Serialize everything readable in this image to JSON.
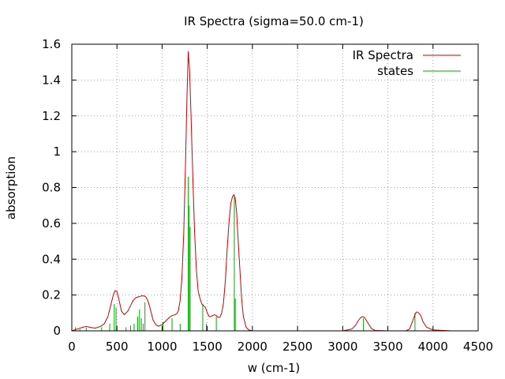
{
  "chart_data": {
    "type": "line",
    "title": "IR Spectra (sigma=50.0 cm-1)",
    "xlabel": "w (cm-1)",
    "ylabel": "absorption",
    "xlim": [
      0,
      4500
    ],
    "ylim": [
      0,
      1.6
    ],
    "x_ticks": [
      0,
      500,
      1000,
      1500,
      2000,
      2500,
      3000,
      3500,
      4000,
      4500
    ],
    "x_tick_labels": [
      "0",
      "500",
      "1000",
      "1500",
      "2000",
      "2500",
      "3000",
      "3500",
      "4000",
      "4500"
    ],
    "y_ticks": [
      0,
      0.2,
      0.4,
      0.6,
      0.8,
      1.0,
      1.2,
      1.4,
      1.6
    ],
    "y_tick_labels": [
      "0",
      "0.2",
      "0.4",
      "0.6",
      "0.8",
      "1",
      "1.2",
      "1.4",
      "1.6"
    ],
    "grid": true,
    "legend_position": "top-right",
    "series": [
      {
        "name": "IR Spectra",
        "kind": "line",
        "color": "#cc0000",
        "x": [
          0,
          60,
          120,
          160,
          200,
          260,
          320,
          360,
          400,
          430,
          460,
          480,
          500,
          520,
          550,
          580,
          620,
          650,
          680,
          710,
          740,
          770,
          800,
          820,
          840,
          860,
          880,
          900,
          930,
          960,
          1000,
          1040,
          1080,
          1110,
          1140,
          1160,
          1180,
          1200,
          1220,
          1240,
          1260,
          1275,
          1290,
          1305,
          1320,
          1340,
          1360,
          1380,
          1400,
          1420,
          1440,
          1460,
          1480,
          1500,
          1520,
          1540,
          1560,
          1580,
          1600,
          1620,
          1640,
          1660,
          1680,
          1700,
          1720,
          1740,
          1760,
          1780,
          1795,
          1810,
          1825,
          1840,
          1860,
          1880,
          1900,
          1930,
          1960,
          2000,
          2100,
          2500,
          3000,
          3100,
          3140,
          3170,
          3200,
          3220,
          3240,
          3260,
          3290,
          3320,
          3360,
          3500,
          3700,
          3740,
          3770,
          3800,
          3815,
          3830,
          3860,
          3890,
          3930,
          4000,
          4200,
          4500
        ],
        "y": [
          0,
          0.01,
          0.02,
          0.025,
          0.02,
          0.015,
          0.025,
          0.04,
          0.08,
          0.14,
          0.2,
          0.225,
          0.22,
          0.18,
          0.11,
          0.09,
          0.11,
          0.14,
          0.17,
          0.185,
          0.19,
          0.195,
          0.195,
          0.19,
          0.17,
          0.14,
          0.1,
          0.06,
          0.035,
          0.025,
          0.035,
          0.055,
          0.075,
          0.085,
          0.09,
          0.095,
          0.11,
          0.17,
          0.3,
          0.55,
          0.95,
          1.3,
          1.56,
          1.45,
          1.2,
          0.85,
          0.55,
          0.34,
          0.22,
          0.18,
          0.15,
          0.14,
          0.13,
          0.1,
          0.08,
          0.08,
          0.085,
          0.09,
          0.085,
          0.075,
          0.075,
          0.1,
          0.16,
          0.28,
          0.45,
          0.6,
          0.71,
          0.75,
          0.76,
          0.74,
          0.66,
          0.52,
          0.35,
          0.18,
          0.08,
          0.02,
          0.005,
          0,
          0,
          0,
          0,
          0.01,
          0.03,
          0.055,
          0.075,
          0.08,
          0.075,
          0.06,
          0.035,
          0.012,
          0.002,
          0,
          0,
          0.01,
          0.05,
          0.09,
          0.105,
          0.105,
          0.09,
          0.05,
          0.02,
          0.005,
          0,
          0
        ]
      },
      {
        "name": "states",
        "kind": "impulses",
        "color": "#00aa00",
        "x": [
          40,
          90,
          160,
          330,
          420,
          470,
          490,
          600,
          650,
          690,
          730,
          750,
          770,
          790,
          810,
          1010,
          1110,
          1200,
          1290,
          1300,
          1310,
          1450,
          1490,
          1600,
          1800,
          1810,
          3230,
          3800
        ],
        "y": [
          0.02,
          0.01,
          0.02,
          0.02,
          0.04,
          0.15,
          0.13,
          0.02,
          0.03,
          0.04,
          0.08,
          0.12,
          0.07,
          0.04,
          0.16,
          0.05,
          0.07,
          0.04,
          0.86,
          0.7,
          0.58,
          0.15,
          0.04,
          0.08,
          0.75,
          0.18,
          0.07,
          0.1
        ]
      }
    ]
  }
}
